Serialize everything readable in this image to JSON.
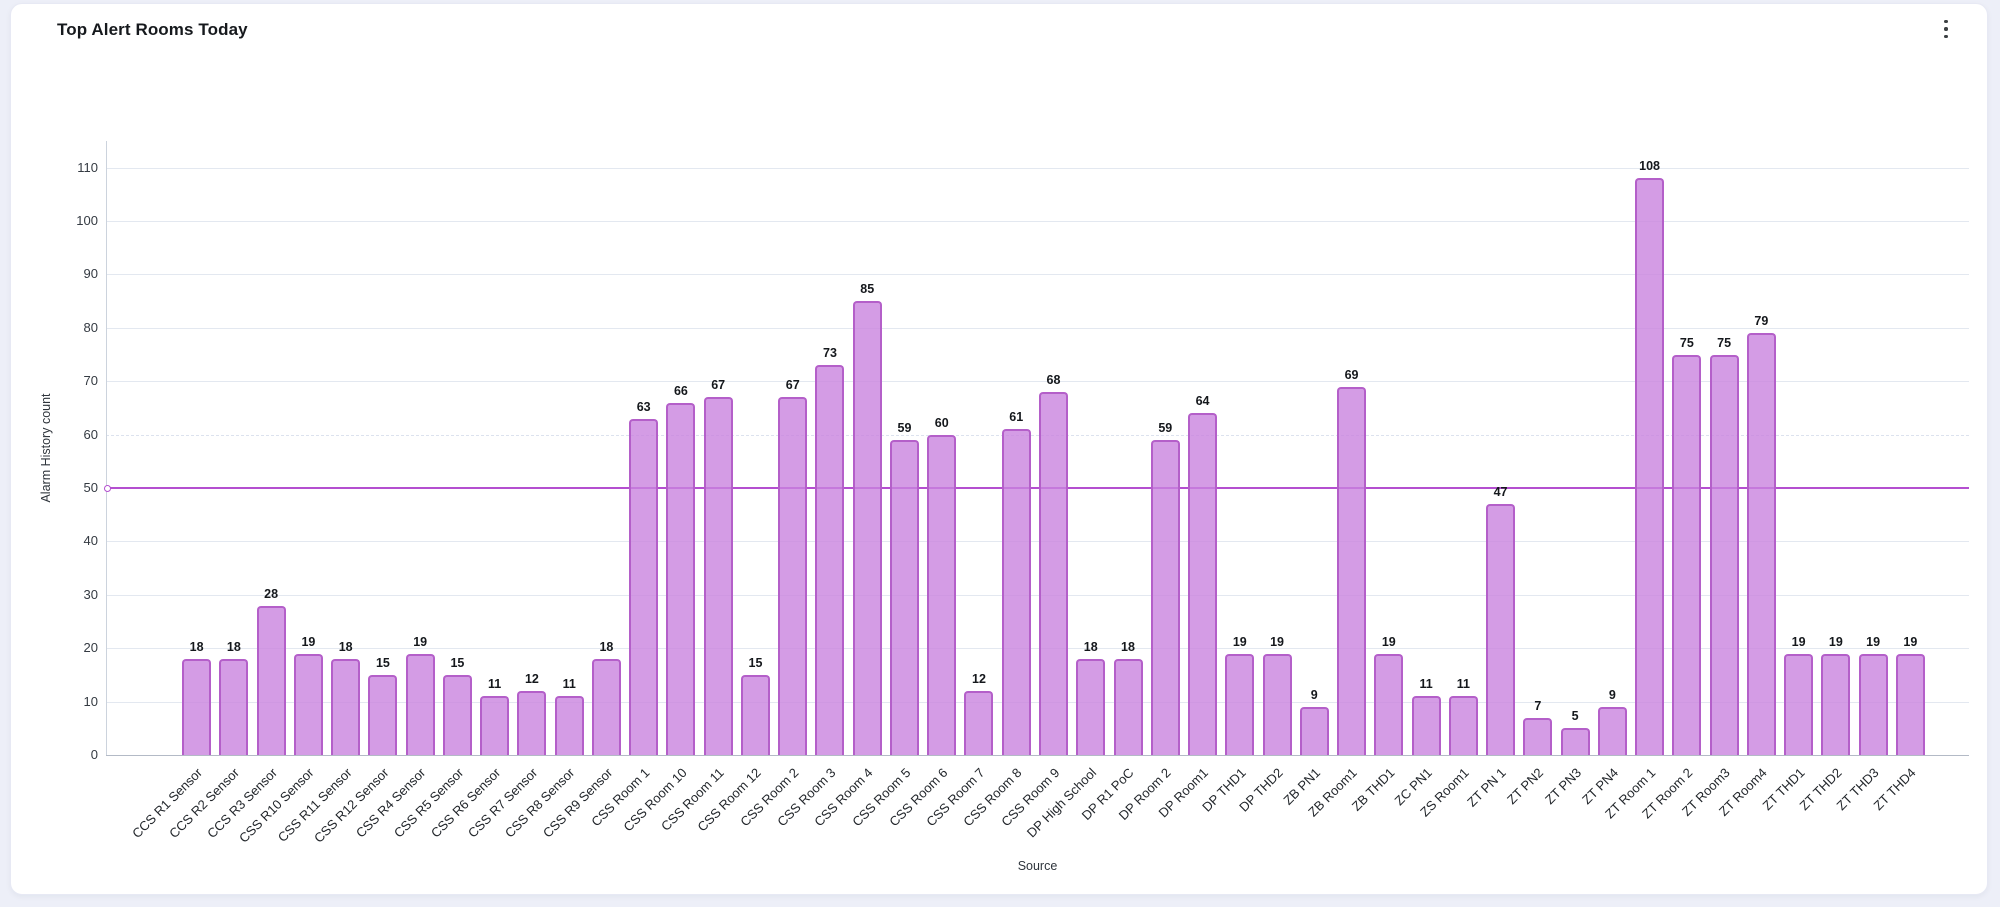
{
  "header": {
    "title": "Top Alert Rooms Today",
    "menu_icon": "kebab-vertical-icon"
  },
  "chart_data": {
    "type": "bar",
    "title": "Top Alert Rooms Today",
    "xlabel": "Source",
    "ylabel": "Alarm History count",
    "ylim": [
      0,
      115
    ],
    "yticks": [
      0,
      10,
      20,
      30,
      40,
      50,
      60,
      70,
      80,
      90,
      100,
      110
    ],
    "grid": true,
    "legend": false,
    "value_labels": true,
    "dashed_gridline_at": 60,
    "threshold": {
      "value": 50,
      "color": "#b44fd0",
      "marker": "circle-start"
    },
    "colors": {
      "bar_fill": "rgba(201,131,222,0.8)",
      "bar_border": "#b45fc9",
      "threshold_line": "#b44fd0",
      "gridline": "#e3e8f0",
      "axis_line": "#b3bac6"
    },
    "categories": [
      "CCS R1 Sensor",
      "CCS R2 Sensor",
      "CCS R3 Sensor",
      "CSS R10 Sensor",
      "CSS R11 Sensor",
      "CSS R12 Sensor",
      "CSS R4 Sensor",
      "CSS R5 Sensor",
      "CSS R6 Sensor",
      "CSS R7 Sensor",
      "CSS R8 Sensor",
      "CSS R9 Sensor",
      "CSS Room 1",
      "CSS Room 10",
      "CSS Room 11",
      "CSS Room 12",
      "CSS Room 2",
      "CSS Room 3",
      "CSS Room 4",
      "CSS Room 5",
      "CSS Room 6",
      "CSS Room 7",
      "CSS Room 8",
      "CSS Room 9",
      "DP High School",
      "DP R1 PoC",
      "DP Room 2",
      "DP Room1",
      "DP THD1",
      "DP THD2",
      "ZB PN1",
      "ZB Room1",
      "ZB THD1",
      "ZC PN1",
      "ZS Room1",
      "ZT PN 1",
      "ZT PN2",
      "ZT PN3",
      "ZT PN4",
      "ZT Room 1",
      "ZT Room 2",
      "ZT Room3",
      "ZT Room4",
      "ZT THD1",
      "ZT THD2",
      "ZT THD3",
      "ZT THD4"
    ],
    "values": [
      18,
      18,
      28,
      19,
      18,
      15,
      19,
      15,
      11,
      12,
      11,
      18,
      63,
      66,
      67,
      15,
      67,
      73,
      85,
      59,
      60,
      12,
      61,
      68,
      18,
      18,
      59,
      64,
      19,
      19,
      9,
      69,
      19,
      11,
      11,
      47,
      7,
      5,
      9,
      108,
      75,
      75,
      79,
      19,
      19,
      19,
      19
    ]
  }
}
